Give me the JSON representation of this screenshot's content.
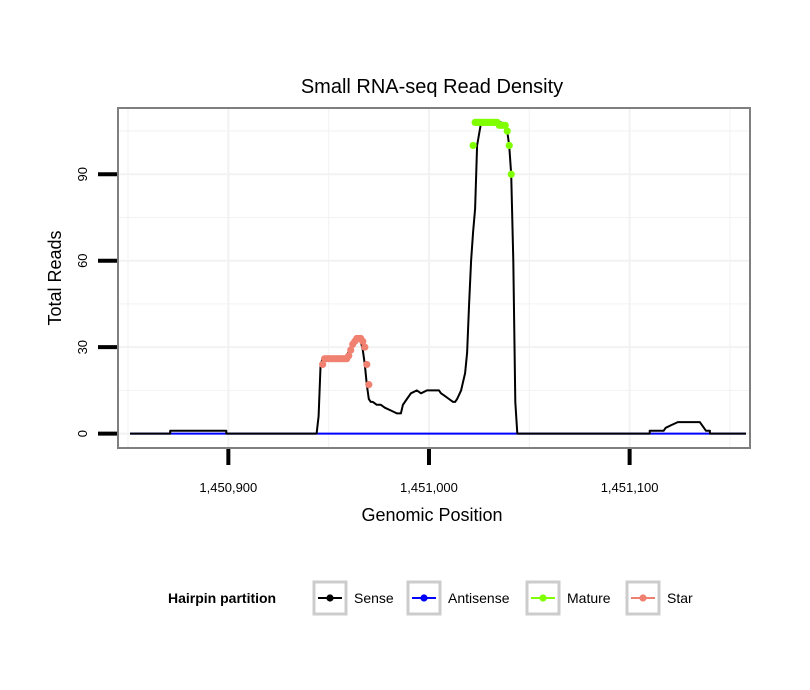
{
  "chart_data": {
    "type": "line",
    "title": "Small RNA-seq Read Density",
    "xlabel": "Genomic Position",
    "ylabel": "Total Reads",
    "xlim": [
      1450845,
      1451160
    ],
    "ylim": [
      -5,
      113
    ],
    "x_ticks": [
      1450900,
      1451000,
      1451100
    ],
    "x_tick_labels": [
      "1,450,900",
      "1,451,000",
      "1,451,100"
    ],
    "y_ticks": [
      0,
      30,
      60,
      90
    ],
    "y_tick_labels": [
      "0",
      "30",
      "60",
      "90"
    ],
    "grid": true,
    "legend": {
      "title": "Hairpin partition",
      "position": "bottom",
      "entries": [
        "Sense",
        "Antisense",
        "Mature",
        "Star"
      ]
    },
    "series": [
      {
        "name": "Sense",
        "color": "#000000",
        "x": [
          1450851,
          1450871,
          1450871,
          1450899,
          1450899,
          1450944,
          1450945,
          1450946,
          1450947,
          1450949,
          1450951,
          1450954,
          1450957,
          1450959,
          1450961,
          1450962,
          1450963,
          1450965,
          1450966,
          1450967,
          1450968,
          1450969,
          1450970,
          1450971,
          1450972,
          1450974,
          1450976,
          1450978,
          1450981,
          1450984,
          1450986,
          1450987,
          1450989,
          1450991,
          1450994,
          1450996,
          1450999,
          1451002,
          1451005,
          1451006,
          1451008,
          1451010,
          1451012,
          1451013,
          1451014,
          1451016,
          1451018,
          1451019,
          1451020,
          1451021,
          1451022,
          1451023,
          1451024,
          1451026,
          1451028,
          1451030,
          1451032,
          1451034,
          1451036,
          1451037,
          1451038,
          1451039,
          1451040,
          1451041,
          1451042,
          1451043,
          1451044,
          1451110,
          1451110,
          1451117,
          1451118,
          1451121,
          1451124,
          1451126,
          1451135,
          1451137,
          1451138,
          1451140,
          1451140,
          1451158
        ],
        "y": [
          0,
          0,
          1,
          1,
          0,
          0,
          6,
          24,
          26,
          26,
          26,
          26,
          26,
          27,
          30,
          32,
          33,
          33,
          32,
          29,
          24,
          17,
          12,
          11,
          11,
          10,
          10,
          9,
          8,
          7,
          7,
          10,
          12,
          14,
          15,
          14,
          15,
          15,
          15,
          14,
          13,
          12,
          11,
          11,
          12,
          15,
          21,
          28,
          45,
          60,
          70,
          78,
          100,
          108,
          108,
          108,
          108,
          108,
          108,
          107,
          107,
          105,
          100,
          90,
          60,
          11,
          0,
          0,
          1,
          1,
          2,
          3,
          4,
          4,
          4,
          2,
          1,
          1,
          0,
          0
        ]
      },
      {
        "name": "Antisense",
        "color": "#0000ff",
        "x": [
          1450851,
          1451158
        ],
        "y": [
          0,
          0
        ]
      },
      {
        "name": "Mature",
        "color": "#7fff00",
        "x": [
          1451022,
          1451023,
          1451024,
          1451025,
          1451026,
          1451027,
          1451028,
          1451029,
          1451030,
          1451031,
          1451032,
          1451033,
          1451034,
          1451035,
          1451036,
          1451037,
          1451038,
          1451039,
          1451040,
          1451041
        ],
        "y": [
          100,
          108,
          108,
          108,
          108,
          108,
          108,
          108,
          108,
          108,
          108,
          108,
          108,
          107,
          107,
          107,
          107,
          105,
          100,
          90
        ]
      },
      {
        "name": "Star",
        "color": "#f08070",
        "x": [
          1450947,
          1450948,
          1450949,
          1450950,
          1450951,
          1450952,
          1450953,
          1450954,
          1450955,
          1450956,
          1450957,
          1450958,
          1450959,
          1450960,
          1450961,
          1450962,
          1450963,
          1450964,
          1450965,
          1450966,
          1450967,
          1450968,
          1450969,
          1450970
        ],
        "y": [
          24,
          26,
          26,
          26,
          26,
          26,
          26,
          26,
          26,
          26,
          26,
          26,
          26,
          27,
          29,
          31,
          32,
          33,
          33,
          33,
          32,
          30,
          24,
          17
        ]
      }
    ]
  }
}
